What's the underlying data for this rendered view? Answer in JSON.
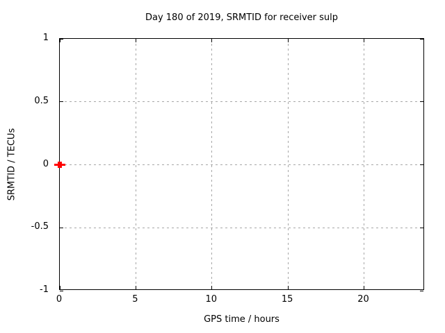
{
  "chart_data": {
    "type": "scatter",
    "title": "Day 180 of 2019, SRMTID for receiver sulp",
    "xlabel": "GPS time / hours",
    "ylabel": "SRMTID / TECUs",
    "xlim": [
      0,
      24
    ],
    "ylim": [
      -1,
      1
    ],
    "xticks": [
      0,
      5,
      10,
      15,
      20
    ],
    "yticks": [
      -1,
      -0.5,
      0,
      0.5,
      1
    ],
    "grid": "dashed, at every tick, hidden on plot borders",
    "legend": "none",
    "series": [
      {
        "name": "SRMTID",
        "marker": "bold-plus",
        "color": "#ff0000",
        "points": [
          {
            "x": 0,
            "y": 0
          }
        ]
      }
    ],
    "colors": {
      "marker": "#ff0000",
      "grid": "#a6a6a6",
      "axis": "#000000",
      "text": "#000000",
      "background": "#ffffff"
    }
  }
}
